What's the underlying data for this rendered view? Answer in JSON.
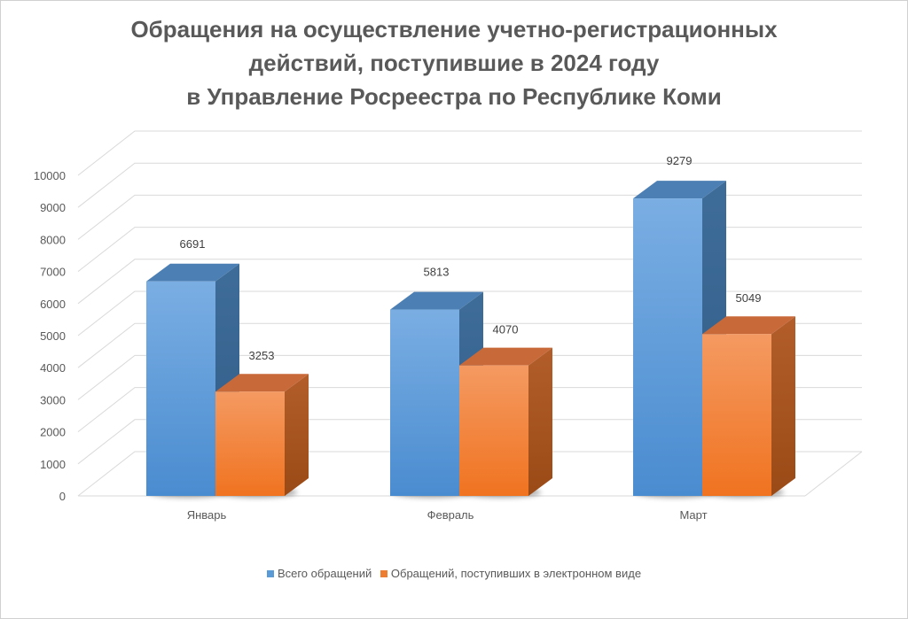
{
  "chart_data": {
    "type": "bar",
    "title_lines": [
      "Обращения на осуществление учетно-регистрационных",
      "действий, поступившие в 2024 году",
      "в Управление Росреестра по Республике Коми"
    ],
    "categories": [
      "Январь",
      "Февраль",
      "Март"
    ],
    "series": [
      {
        "name": "Всего обращений",
        "values": [
          6691,
          5813,
          9279
        ],
        "color": "#5b9bd5"
      },
      {
        "name": "Обращений, поступивших в электронном виде",
        "values": [
          3253,
          4070,
          5049
        ],
        "color": "#ed7d31"
      }
    ],
    "y_ticks": [
      "0",
      "1000",
      "2000",
      "3000",
      "4000",
      "5000",
      "6000",
      "7000",
      "8000",
      "9000",
      "10000"
    ],
    "ylim": [
      0,
      10000
    ],
    "grid": true,
    "legend_position": "bottom",
    "style": "3d-column"
  }
}
